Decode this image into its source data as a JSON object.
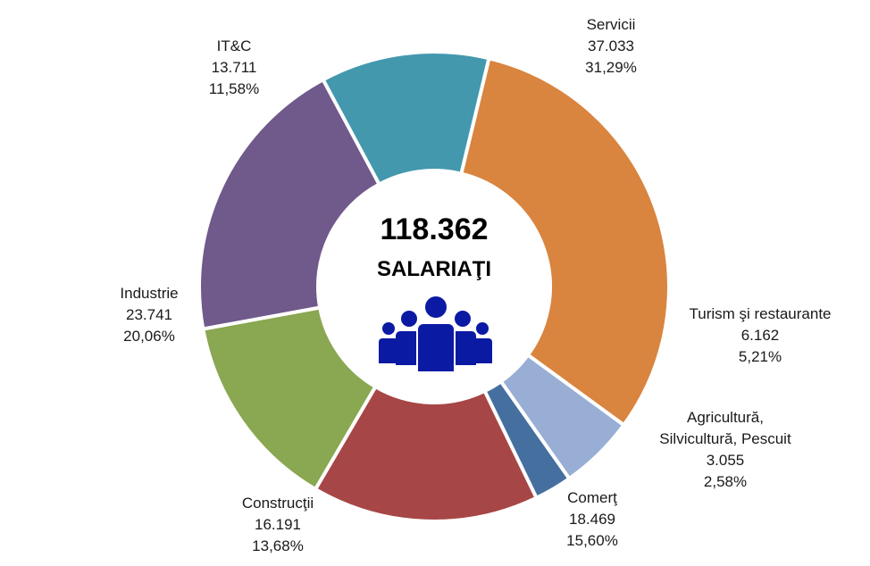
{
  "chart_data": {
    "type": "pie",
    "donut": true,
    "center_total": "118.362",
    "center_label": "SALARIAŢI",
    "center_icon": "people-group-icon",
    "slices": [
      {
        "name": "Servicii",
        "value_label": "37.033",
        "pct_label": "31,29%",
        "value": 37033,
        "pct": 31.29,
        "color": "#d9843f"
      },
      {
        "name": "Turism şi restaurante",
        "value_label": "6.162",
        "pct_label": "5,21%",
        "value": 6162,
        "pct": 5.21,
        "color": "#98aed5"
      },
      {
        "name": "Agricultură, Silvicultură, Pescuit",
        "name_lines": [
          "Agricultură,",
          "Silvicultură, Pescuit"
        ],
        "value_label": "3.055",
        "pct_label": "2,58%",
        "value": 3055,
        "pct": 2.58,
        "color": "#456f9f"
      },
      {
        "name": "Comerţ",
        "value_label": "18.469",
        "pct_label": "15,60%",
        "value": 18469,
        "pct": 15.6,
        "color": "#a74646"
      },
      {
        "name": "Construcţii",
        "value_label": "16.191",
        "pct_label": "13,68%",
        "value": 16191,
        "pct": 13.68,
        "color": "#8aa751"
      },
      {
        "name": "Industrie",
        "value_label": "23.741",
        "pct_label": "20,06%",
        "value": 23741,
        "pct": 20.06,
        "color": "#70598b"
      },
      {
        "name": "IT&C",
        "value_label": "13.711",
        "pct_label": "11,58%",
        "value": 13711,
        "pct": 11.58,
        "color": "#4398ae"
      }
    ]
  }
}
